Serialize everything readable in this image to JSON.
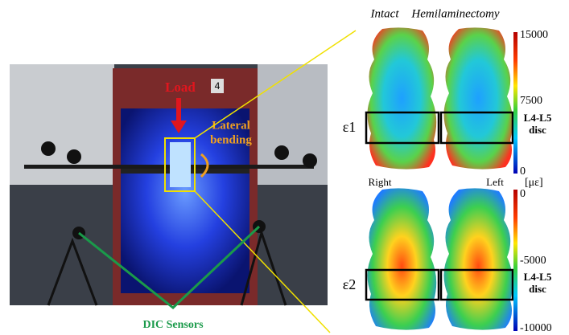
{
  "photo": {
    "rig_label": "4",
    "load": "Load",
    "bending": [
      "Lateral",
      "bending"
    ],
    "sensors": "DIC Sensors"
  },
  "columns": [
    "Intact",
    "Hemilaminectomy"
  ],
  "rows": [
    {
      "label": "ε1",
      "region": [
        "L4-L5",
        "disc"
      ]
    },
    {
      "label": "ε2",
      "region": [
        "L4-L5",
        "disc"
      ]
    }
  ],
  "sides": {
    "right": "Right",
    "left": "Left"
  },
  "colorbars": [
    {
      "ticks": [
        15000,
        7500,
        0
      ],
      "unit": "[με]"
    },
    {
      "ticks": [
        0,
        -5000,
        -10000
      ]
    }
  ]
}
